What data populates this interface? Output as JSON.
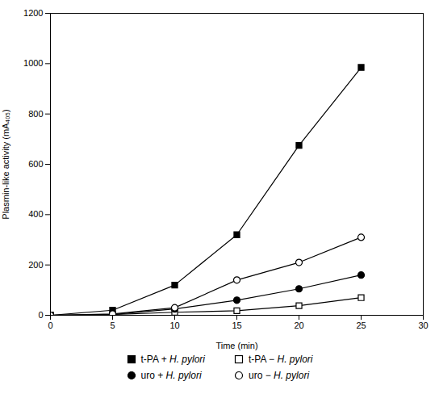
{
  "chart_data": {
    "type": "line",
    "xlabel": "Time (min)",
    "ylabel": "Plasmin-like activity (mA₄₀₅)",
    "x": [
      0,
      5,
      10,
      15,
      20,
      25
    ],
    "series": [
      {
        "name": "t-PA + H. pylori",
        "color": "#000000",
        "marker": "filled_square",
        "values": [
          0,
          20,
          120,
          320,
          675,
          985
        ]
      },
      {
        "name": "t-PA − H. pylori",
        "color": "#000000",
        "marker": "open_square",
        "values": [
          0,
          3,
          12,
          18,
          38,
          70
        ]
      },
      {
        "name": "uro + H. pylori",
        "color": "#000000",
        "marker": "filled_circle",
        "values": [
          0,
          3,
          25,
          60,
          105,
          160
        ]
      },
      {
        "name": "uro − H. pylori",
        "color": "#000000",
        "marker": "open_circle",
        "values": [
          0,
          5,
          30,
          140,
          210,
          310
        ]
      }
    ],
    "xlim": [
      0,
      30
    ],
    "ylim": [
      0,
      1200
    ],
    "xticks": [
      0,
      5,
      10,
      15,
      20,
      25,
      30
    ],
    "yticks": [
      0,
      200,
      400,
      600,
      800,
      1000,
      1200
    ],
    "grid": false,
    "legend": "bottom"
  }
}
